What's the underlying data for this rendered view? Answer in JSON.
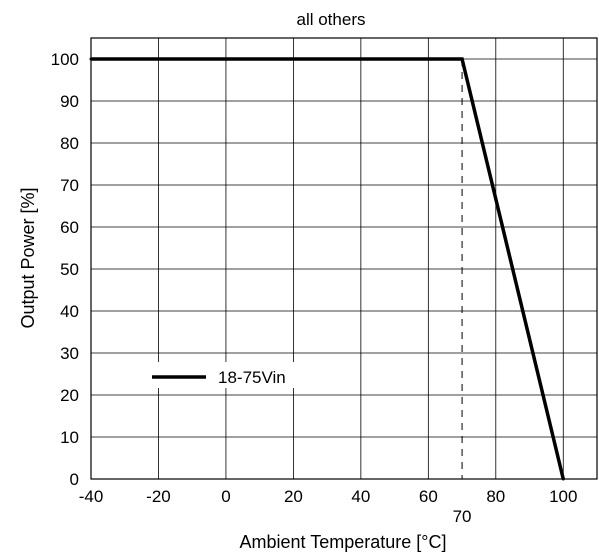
{
  "chart_data": {
    "type": "line",
    "title": "all others",
    "xlabel": "Ambient Temperature [°C]",
    "ylabel": "Output Power [%]",
    "xlim": [
      -40,
      110
    ],
    "ylim": [
      0,
      105
    ],
    "x_ticks": [
      -40,
      -20,
      0,
      20,
      40,
      60,
      80,
      100
    ],
    "y_ticks": [
      0,
      10,
      20,
      30,
      40,
      50,
      60,
      70,
      80,
      90,
      100
    ],
    "grid": true,
    "series": [
      {
        "name": "18-75Vin",
        "color": "#000000",
        "x": [
          -40,
          70,
          100
        ],
        "y": [
          100,
          100,
          0
        ]
      }
    ],
    "annotations": [
      {
        "text": "70",
        "x": 70,
        "style": "dashed-vertical-line"
      }
    ],
    "legend": {
      "placement": "lower-left"
    }
  }
}
